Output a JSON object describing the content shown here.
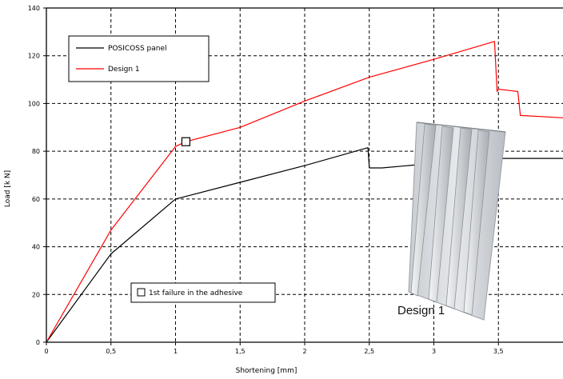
{
  "chart_data": {
    "type": "line",
    "xlabel": "Shortening [mm]",
    "ylabel": "Load [k N]",
    "xlim": [
      0,
      4
    ],
    "ylim": [
      0,
      140
    ],
    "x_ticks": [
      0,
      0.5,
      1,
      1.5,
      2,
      2.5,
      3,
      3.5
    ],
    "x_tick_labels": [
      "0",
      "0,5",
      "1",
      "1,5",
      "2",
      "2,5",
      "3",
      "3,5"
    ],
    "y_ticks": [
      0,
      20,
      40,
      60,
      80,
      100,
      120,
      140
    ],
    "y_tick_labels": [
      "0",
      "20",
      "40",
      "60",
      "80",
      "100",
      "120",
      "140"
    ],
    "grid": true,
    "legend_position": "top-left",
    "series": [
      {
        "name": "POSICOSS panel",
        "color": "#000000",
        "x": [
          0,
          0.5,
          1.0,
          1.5,
          2.0,
          2.49,
          2.5,
          2.6,
          2.8,
          3.0,
          3.5,
          4.0
        ],
        "y": [
          0,
          37,
          60,
          67,
          74,
          81.5,
          73,
          73,
          74,
          75,
          77,
          77
        ]
      },
      {
        "name": "Design 1",
        "color": "#ff0000",
        "x": [
          0,
          0.5,
          1.0,
          1.08,
          1.5,
          2.0,
          2.5,
          3.0,
          3.47,
          3.49,
          3.5,
          3.65,
          3.67,
          4.0
        ],
        "y": [
          0,
          47,
          82,
          84,
          90,
          101,
          111,
          118.5,
          126,
          105,
          106,
          105,
          95,
          94
        ]
      }
    ],
    "annotations": [
      {
        "type": "marker",
        "x": 1.08,
        "y": 84,
        "shape": "square",
        "label": "1st failure in the adhesive"
      }
    ],
    "inset_label": "Design 1"
  }
}
